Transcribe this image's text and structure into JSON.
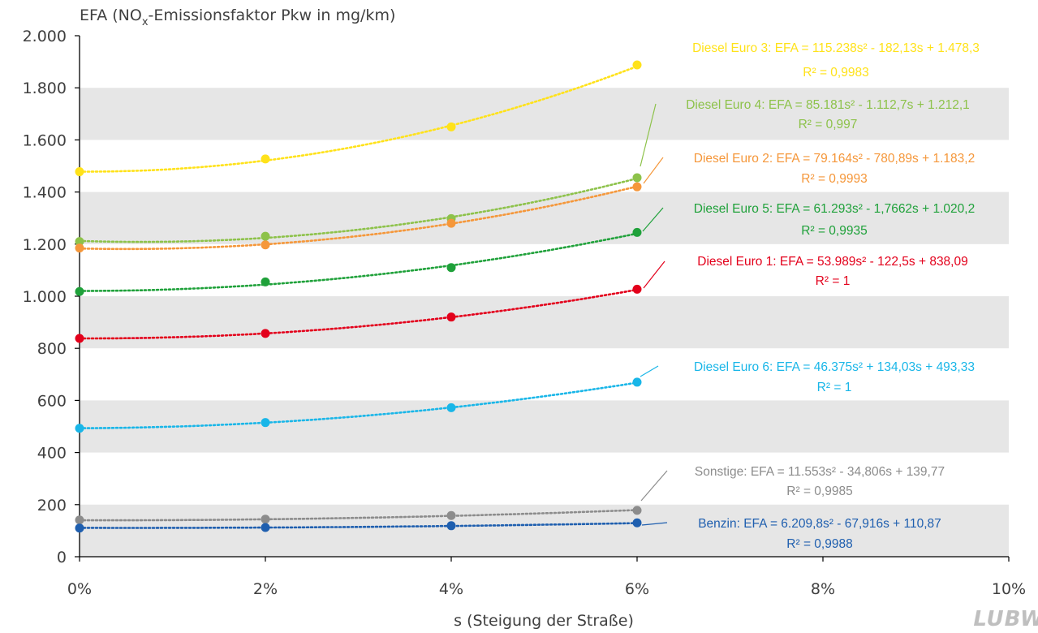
{
  "chart_data": {
    "type": "scatter",
    "title_prefix": "EFA (NO",
    "title_sub": "x",
    "title_suffix": "-Emissionsfaktor Pkw in mg/km)",
    "xlabel": "s (Steigung der Straße)",
    "xlim": [
      0,
      0.1
    ],
    "ylim": [
      0,
      2000
    ],
    "xticks": [
      0,
      0.02,
      0.04,
      0.06,
      0.08,
      0.1
    ],
    "xtick_labels": [
      "0%",
      "2%",
      "4%",
      "6%",
      "8%",
      "10%"
    ],
    "yticks": [
      0,
      200,
      400,
      600,
      800,
      1000,
      1200,
      1400,
      1600,
      1800,
      2000
    ],
    "ytick_labels": [
      "0",
      "200",
      "400",
      "600",
      "800",
      "1.000",
      "1.200",
      "1.400",
      "1.600",
      "1.800",
      "2.000"
    ],
    "grid": "alternating horizontal bands",
    "x": [
      0,
      0.02,
      0.04,
      0.06
    ],
    "series": [
      {
        "key": "euro3",
        "values": [
          1478,
          1527,
          1650,
          1888
        ],
        "color": "#FFE21A",
        "coef": [
          115238,
          -182.13,
          1478.3
        ],
        "equation": "Diesel Euro 3: EFA = 115.238s² - 182,13s + 1.478,3",
        "r2": "R² = 0,9983"
      },
      {
        "key": "euro4",
        "values": [
          1210,
          1230,
          1298,
          1455
        ],
        "color": "#8DC24A",
        "coef": [
          85181,
          -1112.7,
          1212.1
        ],
        "equation": "Diesel Euro 4: EFA = 85.181s² - 1.112,7s + 1.212,1",
        "r2": "R² = 0,997"
      },
      {
        "key": "euro2",
        "values": [
          1185,
          1197,
          1280,
          1420
        ],
        "color": "#F5973A",
        "coef": [
          79164,
          -780.89,
          1183.2
        ],
        "equation": "Diesel Euro 2: EFA = 79.164s² - 780,89s + 1.183,2",
        "r2": "R² = 0,9993"
      },
      {
        "key": "euro5",
        "values": [
          1018,
          1055,
          1110,
          1245
        ],
        "color": "#1FA13A",
        "coef": [
          61293,
          -1.7662,
          1020.2
        ],
        "equation": "Diesel Euro 5: EFA = 61.293s² - 1,7662s + 1.020,2",
        "r2": "R² = 0,9935"
      },
      {
        "key": "euro1",
        "values": [
          838,
          857,
          920,
          1027
        ],
        "color": "#E3001B",
        "coef": [
          53989,
          -122.5,
          838.09
        ],
        "equation": "Diesel Euro 1: EFA = 53.989s² - 122,5s + 838,09",
        "r2": "R² = 1"
      },
      {
        "key": "euro6",
        "values": [
          493,
          515,
          572,
          670
        ],
        "color": "#19B6E8",
        "coef": [
          46375,
          134.03,
          493.33
        ],
        "equation": "Diesel Euro 6: EFA = 46.375s² + 134,03s + 493,33",
        "r2": "R² = 1"
      },
      {
        "key": "sonstige",
        "values": [
          141,
          144,
          158,
          178
        ],
        "color": "#8C8C8C",
        "coef": [
          11553,
          -34.806,
          139.77
        ],
        "equation": "Sonstige: EFA = 11.553s² - 34,806s + 139,77",
        "r2": "R² = 0,9985"
      },
      {
        "key": "benzin",
        "values": [
          110,
          112,
          119,
          130
        ],
        "color": "#1F5FAF",
        "coef": [
          6209.8,
          -67.916,
          110.87
        ],
        "equation": "Benzin: EFA = 6.209,8s² - 67,916s + 110,87",
        "r2": "R² = 0,9988"
      }
    ]
  },
  "logo_text": "LUBW"
}
